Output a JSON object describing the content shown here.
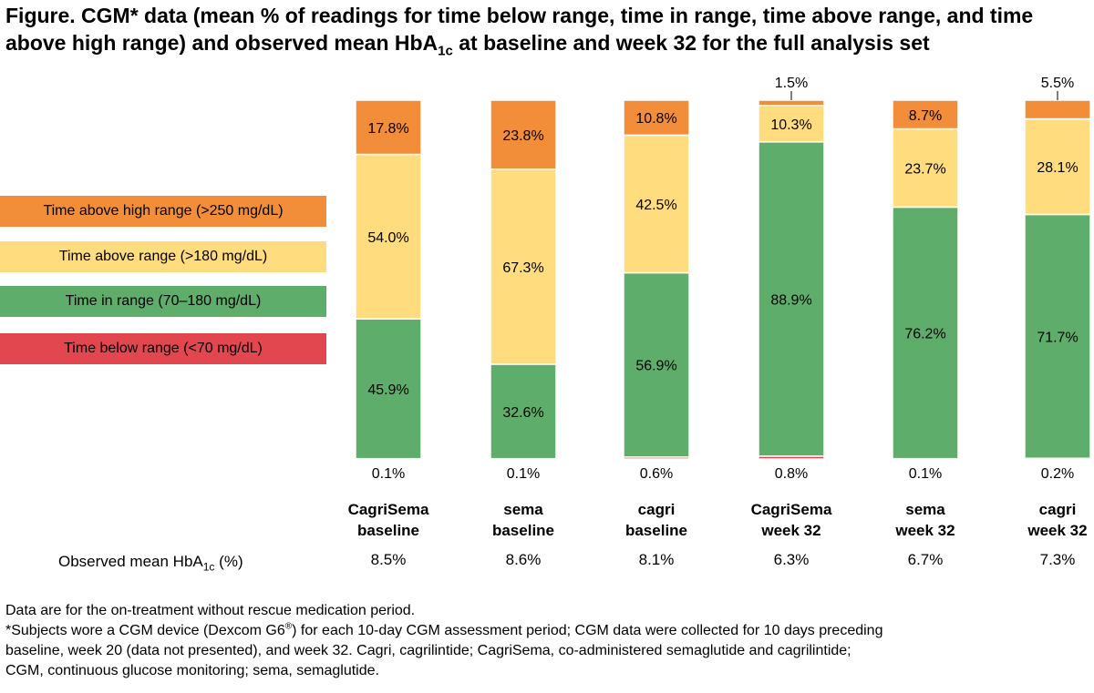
{
  "title": {
    "part1": "Figure. CGM* data (mean % of readings for time below range, time in range, time above range, and time above high range) and observed mean HbA",
    "sub": "1c",
    "part2": " at baseline and week 32 for the full analysis set"
  },
  "colors": {
    "above_high": "#F28E3A",
    "above": "#FFDD7F",
    "in_range": "#5FAD6A",
    "below": "#E2464E"
  },
  "chart_data": {
    "type": "bar",
    "stacked": true,
    "categories": [
      [
        "CagriSema",
        "baseline"
      ],
      [
        "sema",
        "baseline"
      ],
      [
        "cagri",
        "baseline"
      ],
      [
        "CagriSema",
        "week 32"
      ],
      [
        "sema",
        "week 32"
      ],
      [
        "cagri",
        "week 32"
      ]
    ],
    "series": [
      {
        "name": "Time below range (<70 mg/dL)",
        "key": "below",
        "values": [
          0.1,
          0.1,
          0.6,
          0.8,
          0.1,
          0.2
        ]
      },
      {
        "name": "Time in range (70–180 mg/dL)",
        "key": "in_range",
        "values": [
          45.9,
          32.6,
          56.9,
          88.9,
          76.2,
          71.7
        ]
      },
      {
        "name": "Time above range (>180 mg/dL)",
        "key": "above",
        "values": [
          54.0,
          67.3,
          42.5,
          10.3,
          23.7,
          28.1
        ]
      },
      {
        "name": "Time above high range (>250 mg/dL)",
        "key": "above_high",
        "values": [
          17.8,
          23.8,
          10.8,
          1.5,
          8.7,
          5.5
        ]
      }
    ],
    "legend_order": [
      "above_high",
      "above",
      "in_range",
      "below"
    ],
    "legend_position": "left",
    "hba1c": {
      "label": "Observed mean HbA",
      "label_sub": "1c",
      "label_suffix": " (%)",
      "values": [
        "8.5%",
        "8.6%",
        "8.1%",
        "6.3%",
        "6.7%",
        "7.3%"
      ]
    }
  },
  "notes": {
    "line1": "Data are for the on-treatment without rescue medication period.",
    "line2a": "*Subjects wore a CGM device (Dexcom G6",
    "line2sup": "®",
    "line2b": ") for each 10-day CGM assessment period; CGM data were collected for 10 days preceding",
    "line3": "baseline, week 20 (data not presented), and week 32. Cagri, cagrilintide; CagriSema, co-administered semaglutide and cagrilintide;",
    "line4": "CGM, continuous glucose monitoring; sema, semaglutide."
  }
}
